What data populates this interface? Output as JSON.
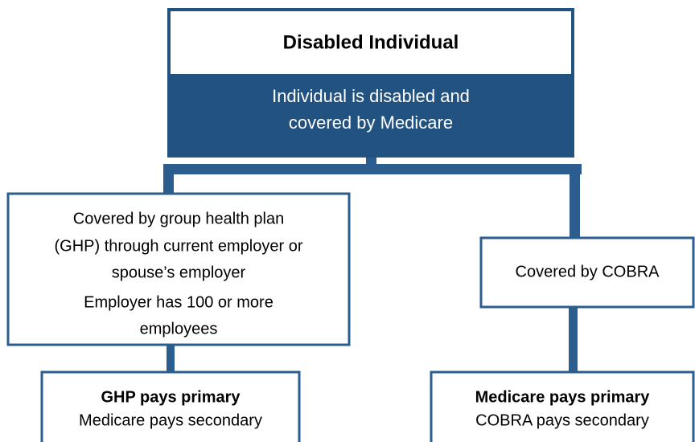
{
  "root": {
    "title": "Disabled Individual",
    "subtitle": [
      "Individual is disabled and",
      "covered by Medicare"
    ]
  },
  "branches": [
    {
      "condition": [
        [
          "Covered by group health plan",
          "(GHP) through current employer or",
          "spouse’s employer"
        ],
        [
          "Employer has 100 or more",
          "employees"
        ]
      ],
      "outcome": {
        "primary": "GHP pays primary",
        "secondary": "Medicare pays secondary"
      }
    },
    {
      "condition": [
        [
          "Covered by COBRA"
        ]
      ],
      "outcome": {
        "primary": "Medicare pays primary",
        "secondary": "COBRA pays secondary"
      }
    }
  ]
}
